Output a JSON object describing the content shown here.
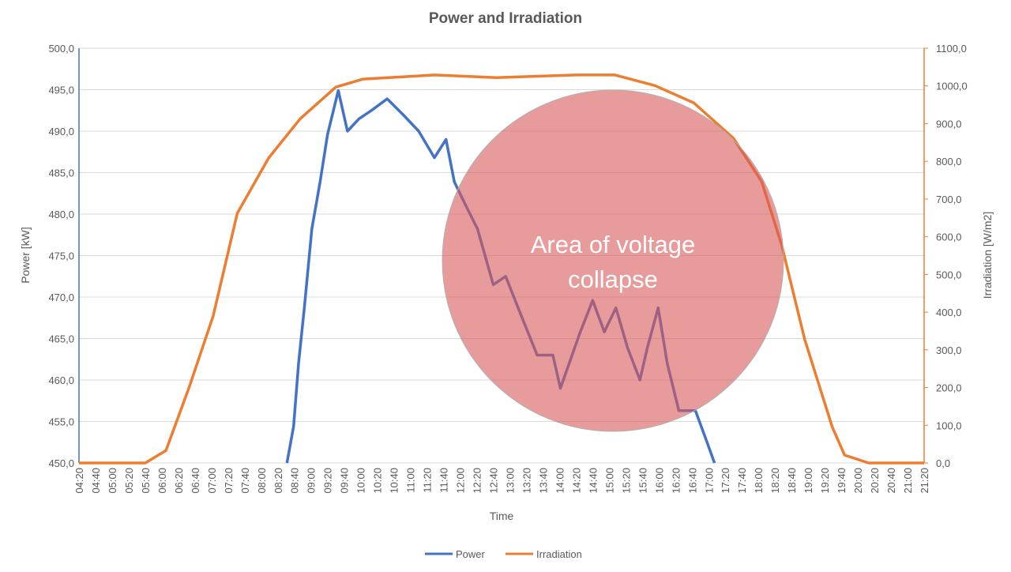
{
  "chart_data": {
    "type": "line",
    "title": "Power and Irradiation",
    "xlabel": "Time",
    "ylabel_left": "Power [kW]",
    "ylabel_right": "Irradiation [W/m2]",
    "ylim_left": [
      450,
      500
    ],
    "ylim_right": [
      0,
      1100
    ],
    "xlim": [
      "04:20",
      "21:20"
    ],
    "grid": "horizontal",
    "legend_position": "bottom",
    "yticks_left": [
      "450,0",
      "455,0",
      "460,0",
      "465,0",
      "470,0",
      "475,0",
      "480,0",
      "485,0",
      "490,0",
      "495,0",
      "500,0"
    ],
    "yticks_right": [
      "0,0",
      "100,0",
      "200,0",
      "300,0",
      "400,0",
      "500,0",
      "600,0",
      "700,0",
      "800,0",
      "900,0",
      "1000,0",
      "1100,0"
    ],
    "xticks": [
      "04:20",
      "04:40",
      "05:00",
      "05:20",
      "05:40",
      "06:00",
      "06:20",
      "06:40",
      "07:00",
      "07:20",
      "07:40",
      "08:00",
      "08:20",
      "08:40",
      "09:00",
      "09:20",
      "09:40",
      "10:00",
      "10:20",
      "10:40",
      "11:00",
      "11:20",
      "11:40",
      "12:00",
      "12:20",
      "12:40",
      "13:00",
      "13:20",
      "13:40",
      "14:00",
      "14:20",
      "14:40",
      "15:00",
      "15:20",
      "15:40",
      "16:00",
      "16:20",
      "16:40",
      "17:00",
      "17:20",
      "17:40",
      "18:00",
      "18:20",
      "18:40",
      "19:00",
      "19:20",
      "19:40",
      "20:00",
      "20:20",
      "20:40",
      "21:00",
      "21:20"
    ],
    "series": [
      {
        "name": "Power",
        "axis": "left",
        "color": "#4472C4",
        "x": [
          "08:31",
          "08:39",
          "08:45",
          "08:52",
          "09:01",
          "09:11",
          "09:20",
          "09:33",
          "09:44",
          "09:58",
          "10:13",
          "10:32",
          "10:51",
          "11:10",
          "11:29",
          "11:43",
          "11:53",
          "12:07",
          "12:21",
          "12:40",
          "12:55",
          "13:14",
          "13:33",
          "13:52",
          "14:01",
          "14:25",
          "14:40",
          "14:54",
          "15:08",
          "15:22",
          "15:37",
          "15:46",
          "15:59",
          "16:10",
          "16:24",
          "16:44",
          "16:58",
          "17:07"
        ],
        "values": [
          450.0,
          454.4,
          462.0,
          468.7,
          478.2,
          483.9,
          489.6,
          494.9,
          490.0,
          491.5,
          492.5,
          493.9,
          492.0,
          490.0,
          486.8,
          489.0,
          483.9,
          481.0,
          478.2,
          471.5,
          472.5,
          467.7,
          463.0,
          463.0,
          459.0,
          465.8,
          469.6,
          465.8,
          468.7,
          463.9,
          460.0,
          463.9,
          468.7,
          462.0,
          456.3,
          456.3,
          452.5,
          450.0
        ]
      },
      {
        "name": "Irradiation",
        "axis": "right",
        "color": "#ED7D31",
        "x": [
          "04:20",
          "05:40",
          "06:05",
          "06:33",
          "07:02",
          "07:31",
          "08:09",
          "08:47",
          "09:30",
          "10:03",
          "11:29",
          "12:44",
          "14:20",
          "15:07",
          "15:55",
          "16:42",
          "17:30",
          "18:04",
          "18:28",
          "18:56",
          "19:29",
          "19:44",
          "20:13",
          "21:20"
        ],
        "values": [
          0,
          0,
          33,
          201,
          390,
          662,
          809,
          913,
          997,
          1018,
          1029,
          1022,
          1029,
          1029,
          1001,
          955,
          861,
          746,
          578,
          327,
          96,
          21,
          0,
          0
        ]
      }
    ],
    "annotations": [
      {
        "text_line1": "Area of voltage",
        "text_line2": "collapse",
        "shape": "circle",
        "fill": "#D9595999"
      }
    ]
  }
}
